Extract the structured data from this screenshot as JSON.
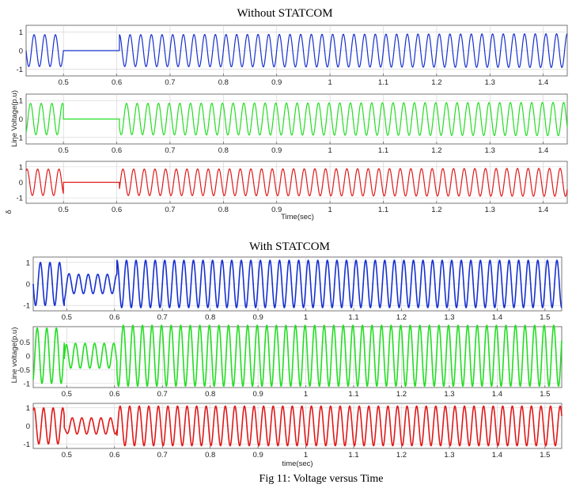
{
  "chart_data": [
    {
      "type": "line",
      "group_title": "Without STATCOM",
      "xlabel": "Time(sec)",
      "ylabel": "Line Voltage(p.u)",
      "side_label": "δ",
      "xlim": [
        0.43,
        1.445
      ],
      "xticks": [
        0.5,
        0.6,
        0.7,
        0.8,
        0.9,
        1,
        1.1,
        1.2,
        1.3,
        1.4
      ],
      "xtick_labels": [
        "0.5",
        "0.6",
        "0.7",
        "0.8",
        "0.9",
        "1",
        "1.1",
        "1.2",
        "1.3",
        "1.4"
      ],
      "series": [
        {
          "color": "#1530d0",
          "ylim": [
            -1.35,
            1.35
          ],
          "yticks": [
            -1,
            0,
            1
          ],
          "ytick_labels": [
            "-1",
            "0",
            "1"
          ],
          "frequency_hz": 50,
          "fault_interval": [
            0.5,
            0.605
          ],
          "amplitude_before": 0.85,
          "amplitude_during_fault": 0.0,
          "amplitude_after": [
            0.85,
            0.9
          ]
        },
        {
          "color": "#22dd22",
          "ylim": [
            -1.35,
            1.35
          ],
          "yticks": [
            -1,
            0,
            1
          ],
          "ytick_labels": [
            "-1",
            "0",
            "1"
          ],
          "frequency_hz": 50,
          "fault_interval": [
            0.5,
            0.605
          ],
          "amplitude_before": 0.85,
          "amplitude_during_fault": 0.0,
          "amplitude_after": [
            0.85,
            0.9
          ]
        },
        {
          "color": "#e01818",
          "ylim": [
            -1.35,
            1.35
          ],
          "yticks": [
            -1,
            0,
            1
          ],
          "ytick_labels": [
            "-1",
            "0",
            "1"
          ],
          "frequency_hz": 50,
          "fault_interval": [
            0.5,
            0.605
          ],
          "amplitude_before": 0.85,
          "amplitude_during_fault": 0.0,
          "amplitude_after": [
            0.85,
            0.9
          ]
        }
      ]
    },
    {
      "type": "line",
      "group_title": "With STATCOM",
      "xlabel": "time(sec)",
      "ylabel": "Line voltage(p.u)",
      "xlim": [
        0.43,
        1.535
      ],
      "xticks": [
        0.5,
        0.6,
        0.7,
        0.8,
        0.9,
        1,
        1.1,
        1.2,
        1.3,
        1.4,
        1.5
      ],
      "xtick_labels": [
        "0.5",
        "0.6",
        "0.7",
        "0.8",
        "0.9",
        "1",
        "1.1",
        "1.2",
        "1.3",
        "1.4",
        "1.5"
      ],
      "series": [
        {
          "color": "#1530d0",
          "ylim": [
            -1.25,
            1.25
          ],
          "yticks": [
            -1,
            0,
            1
          ],
          "ytick_labels": [
            "-1",
            "0",
            "1"
          ],
          "frequency_hz": 50,
          "fault_interval": [
            0.495,
            0.605
          ],
          "amplitude_before": 1.0,
          "amplitude_during_fault": 0.45,
          "amplitude_after": [
            1.1,
            1.1
          ]
        },
        {
          "color": "#22dd22",
          "ylim": [
            -1.15,
            1.05
          ],
          "yticks": [
            -1,
            -0.5,
            0,
            0.5
          ],
          "ytick_labels": [
            "-1",
            "-0.5",
            "0",
            "0.5"
          ],
          "frequency_hz": 50,
          "fault_interval": [
            0.495,
            0.605
          ],
          "amplitude_before": 1.0,
          "amplitude_during_fault": 0.45,
          "amplitude_after": [
            1.1,
            1.1
          ]
        },
        {
          "color": "#e01818",
          "ylim": [
            -1.25,
            1.25
          ],
          "yticks": [
            -1,
            0,
            1
          ],
          "ytick_labels": [
            "-1",
            "0",
            "1"
          ],
          "frequency_hz": 50,
          "fault_interval": [
            0.495,
            0.605
          ],
          "amplitude_before": 1.0,
          "amplitude_during_fault": 0.45,
          "amplitude_after": [
            1.1,
            1.1
          ]
        }
      ]
    }
  ],
  "caption": "Fig 11: Voltage versus Time"
}
